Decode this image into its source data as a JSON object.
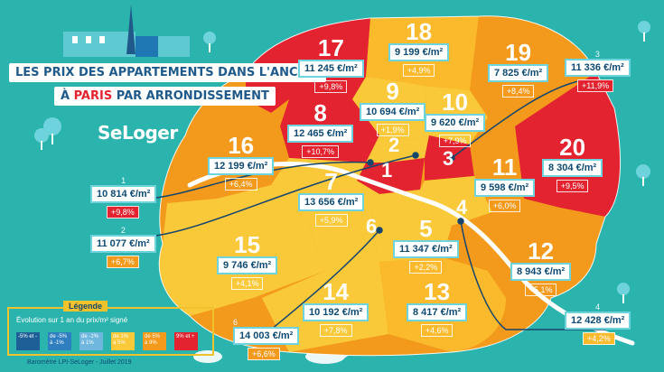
{
  "colors": {
    "background": "#2bb3ad",
    "very_high": "#e3232f",
    "high": "#f39a1c",
    "medium": "#f9c93a",
    "low": "#fdd86a",
    "price_text": "#0e4a73"
  },
  "header": {
    "title_line1": "Les prix des appartements dans l'ancien",
    "title_line2_pre": "à",
    "title_line2_city": "Paris",
    "title_line2_post": "par arrondissement",
    "brand": "SeLoger"
  },
  "arrondissements": [
    {
      "num": "17",
      "price": "11 245 €/m²",
      "delta": "+9,8%"
    },
    {
      "num": "18",
      "price": "9 199 €/m²",
      "delta": "+4,9%"
    },
    {
      "num": "19",
      "price": "7 825 €/m²",
      "delta": "+8,4%"
    },
    {
      "num": "9",
      "price": "10 694 €/m²",
      "delta": "+1,9%"
    },
    {
      "num": "10",
      "price": "9 620 €/m²",
      "delta": "+7,9%"
    },
    {
      "num": "8",
      "price": "12 465 €/m²",
      "delta": "+10,7%"
    },
    {
      "num": "16",
      "price": "12 199 €/m²",
      "delta": "+6,4%"
    },
    {
      "num": "2",
      "price": "",
      "delta": ""
    },
    {
      "num": "1",
      "price": "",
      "delta": ""
    },
    {
      "num": "3",
      "price": "",
      "delta": ""
    },
    {
      "num": "11",
      "price": "9 598 €/m²",
      "delta": "+6,0%"
    },
    {
      "num": "20",
      "price": "8 304 €/m²",
      "delta": "+9,5%"
    },
    {
      "num": "7",
      "price": "13 656 €/m²",
      "delta": "+5,9%"
    },
    {
      "num": "4",
      "price": "",
      "delta": ""
    },
    {
      "num": "5",
      "price": "11 347 €/m²",
      "delta": "+2,2%"
    },
    {
      "num": "6",
      "price": "",
      "delta": ""
    },
    {
      "num": "15",
      "price": "9 746 €/m²",
      "delta": "+4,1%"
    },
    {
      "num": "12",
      "price": "8 943 €/m²",
      "delta": "+5,1%"
    },
    {
      "num": "14",
      "price": "10 192 €/m²",
      "delta": "+7,8%"
    },
    {
      "num": "13",
      "price": "8 417 €/m²",
      "delta": "+4,6%"
    }
  ],
  "callouts": [
    {
      "id": "1",
      "price": "10 814 €/m²",
      "delta": "+9,8%"
    },
    {
      "id": "2",
      "price": "11 077 €/m²",
      "delta": "+6,7%"
    },
    {
      "id": "3",
      "price": "11 336 €/m²",
      "delta": "+11,9%"
    },
    {
      "id": "4",
      "price": "12 428 €/m²",
      "delta": "+4,2%"
    },
    {
      "id": "6",
      "price": "14 003 €/m²",
      "delta": "+6,6%"
    }
  ],
  "legend": {
    "title": "Légende",
    "subtitle": "Évolution sur 1 an du prix/m² signé",
    "items": [
      {
        "text": "-5% et -",
        "color": "#1d5f96"
      },
      {
        "text": "de -5% à -1%",
        "color": "#2f7fc0"
      },
      {
        "text": "de -1% à 1%",
        "color": "#6fb7de"
      },
      {
        "text": "de 1% à 5%",
        "color": "#f9c93a"
      },
      {
        "text": "de 5% à 9%",
        "color": "#f39a1c"
      },
      {
        "text": "9% et +",
        "color": "#e3232f"
      }
    ]
  },
  "footer": "Baromètre LPI-SeLoger - Juillet 2019"
}
